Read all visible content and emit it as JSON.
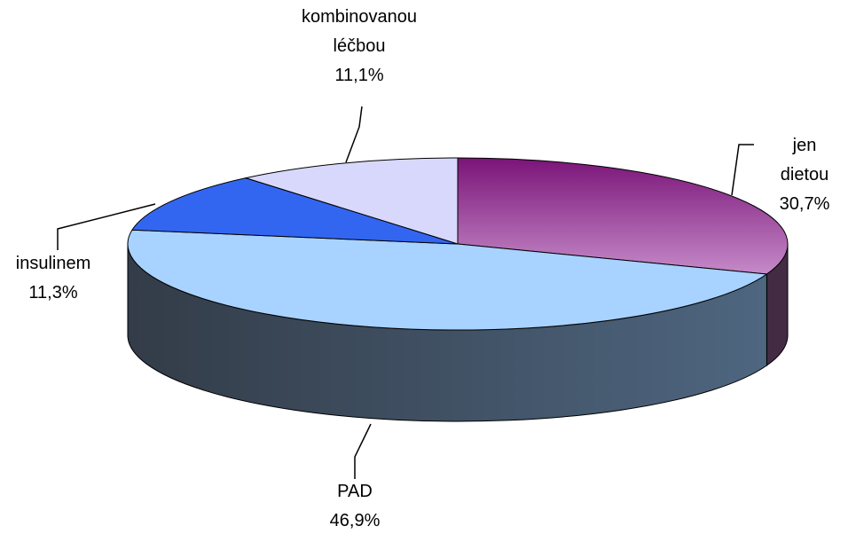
{
  "chart_data": {
    "type": "pie3d",
    "categories": [
      "jen dietou",
      "PAD",
      "insulinem",
      "kombinovanou léčbou"
    ],
    "values": [
      30.7,
      46.9,
      11.3,
      11.1
    ],
    "value_labels": [
      "30,7%",
      "46,9%",
      "11,3%",
      "11,1%"
    ],
    "colors": [
      "#b470b4",
      "#a8d2ff",
      "#3366f0",
      "#d8d8fc"
    ]
  }
}
